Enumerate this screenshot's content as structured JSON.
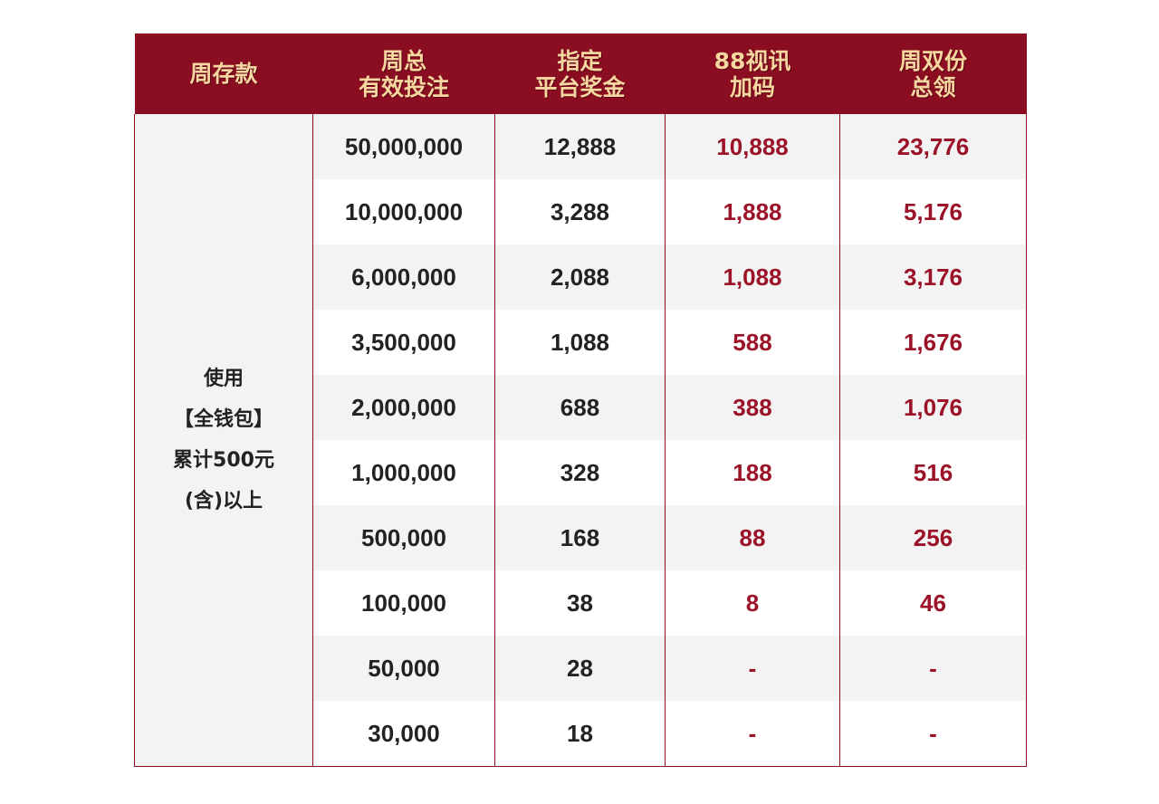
{
  "headers": [
    [
      "周存款"
    ],
    [
      "周总",
      "有效投注"
    ],
    [
      "指定",
      "平台奖金"
    ],
    [
      "88视讯",
      "加码"
    ],
    [
      "周双份",
      "总领"
    ]
  ],
  "deposit_condition": [
    "使用",
    "【全钱包】",
    "累计500元",
    "(含)以上"
  ],
  "rows": [
    {
      "bet": "50,000,000",
      "bonus": "12,888",
      "extra": "10,888",
      "total": "23,776"
    },
    {
      "bet": "10,000,000",
      "bonus": "3,288",
      "extra": "1,888",
      "total": "5,176"
    },
    {
      "bet": "6,000,000",
      "bonus": "2,088",
      "extra": "1,088",
      "total": "3,176"
    },
    {
      "bet": "3,500,000",
      "bonus": "1,088",
      "extra": "588",
      "total": "1,676"
    },
    {
      "bet": "2,000,000",
      "bonus": "688",
      "extra": "388",
      "total": "1,076"
    },
    {
      "bet": "1,000,000",
      "bonus": "328",
      "extra": "188",
      "total": "516"
    },
    {
      "bet": "500,000",
      "bonus": "168",
      "extra": "88",
      "total": "256"
    },
    {
      "bet": "100,000",
      "bonus": "38",
      "extra": "8",
      "total": "46"
    },
    {
      "bet": "50,000",
      "bonus": "28",
      "extra": "-",
      "total": "-"
    },
    {
      "bet": "30,000",
      "bonus": "18",
      "extra": "-",
      "total": "-"
    }
  ],
  "colors": {
    "header_bg": "#8b0d21",
    "header_text": "#f6d7a0",
    "accent_red": "#9a1328",
    "stripe": "#f3f3f3"
  }
}
